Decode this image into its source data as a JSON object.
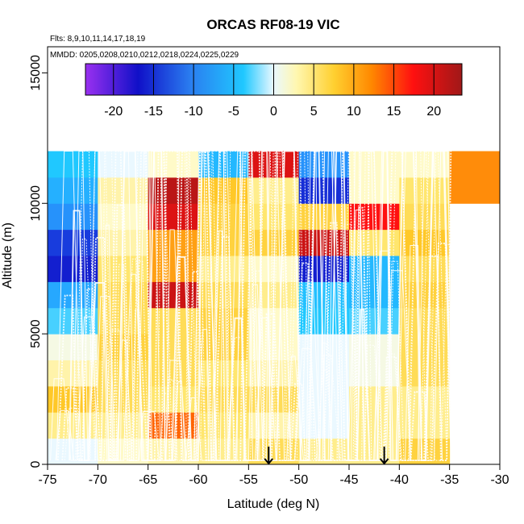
{
  "chart_data": {
    "type": "heatmap",
    "title": "ORCAS RF08-19 VIC",
    "flights_note": "Flts: 8,9,10,11,14,17,18,19",
    "dates_note": "MMDD: 0205,0208,0210,0212,0218,0224,0225,0229",
    "xlabel": "Latitude (deg N)",
    "ylabel": "Altitude (m)",
    "xlim": [
      -75,
      -30
    ],
    "ylim": [
      0,
      16000
    ],
    "x_ticks": [
      -75,
      -70,
      -65,
      -60,
      -55,
      -50,
      -45,
      -40,
      -35,
      -30
    ],
    "y_ticks": [
      0,
      5000,
      10000,
      15000
    ],
    "x_edges": [
      -75,
      -70,
      -65,
      -60,
      -55,
      -50,
      -45,
      -40,
      -35,
      -30
    ],
    "y_edges": [
      0,
      1000,
      2000,
      3000,
      4000,
      5000,
      6000,
      7000,
      8000,
      9000,
      10000,
      11000,
      12000
    ],
    "colorbar": {
      "range": [
        -23.5,
        23.5
      ],
      "tick_values": [
        -20,
        -15,
        -10,
        -5,
        0,
        5,
        10,
        15,
        20
      ],
      "tick_labels": [
        "-20",
        "-15",
        "-10",
        "-5",
        "0",
        "5",
        "10",
        "15",
        "20"
      ]
    },
    "cells": [
      [
        0,
        2,
        3,
        4,
        6,
        4,
        4,
        7,
        null
      ],
      [
        4,
        4,
        13,
        5,
        3,
        0,
        4,
        4,
        null
      ],
      [
        8,
        6,
        5,
        6,
        6,
        0,
        4,
        4,
        null
      ],
      [
        3,
        6,
        6,
        5,
        3,
        0,
        1,
        6,
        null
      ],
      [
        1,
        7,
        6,
        7,
        2,
        0,
        1,
        6,
        null
      ],
      [
        -4,
        6,
        6,
        7,
        2,
        -5,
        -4,
        6,
        null
      ],
      [
        -9,
        6,
        21,
        6,
        4,
        -6,
        -7,
        7,
        null
      ],
      [
        -19,
        5,
        10,
        4,
        2,
        -19,
        -7,
        6,
        null
      ],
      [
        -17,
        3,
        10,
        7,
        7,
        21,
        5,
        8,
        null
      ],
      [
        -11,
        2,
        20,
        7,
        5,
        7,
        18,
        6,
        null
      ],
      [
        -8,
        3,
        22,
        8,
        4,
        -18,
        2,
        5,
        11
      ],
      [
        -5,
        0,
        2,
        -7,
        20,
        -11,
        2,
        2,
        11
      ]
    ],
    "arrows": [
      {
        "latitude": -53.0,
        "label": ""
      },
      {
        "latitude": -41.5,
        "label": ""
      }
    ]
  }
}
